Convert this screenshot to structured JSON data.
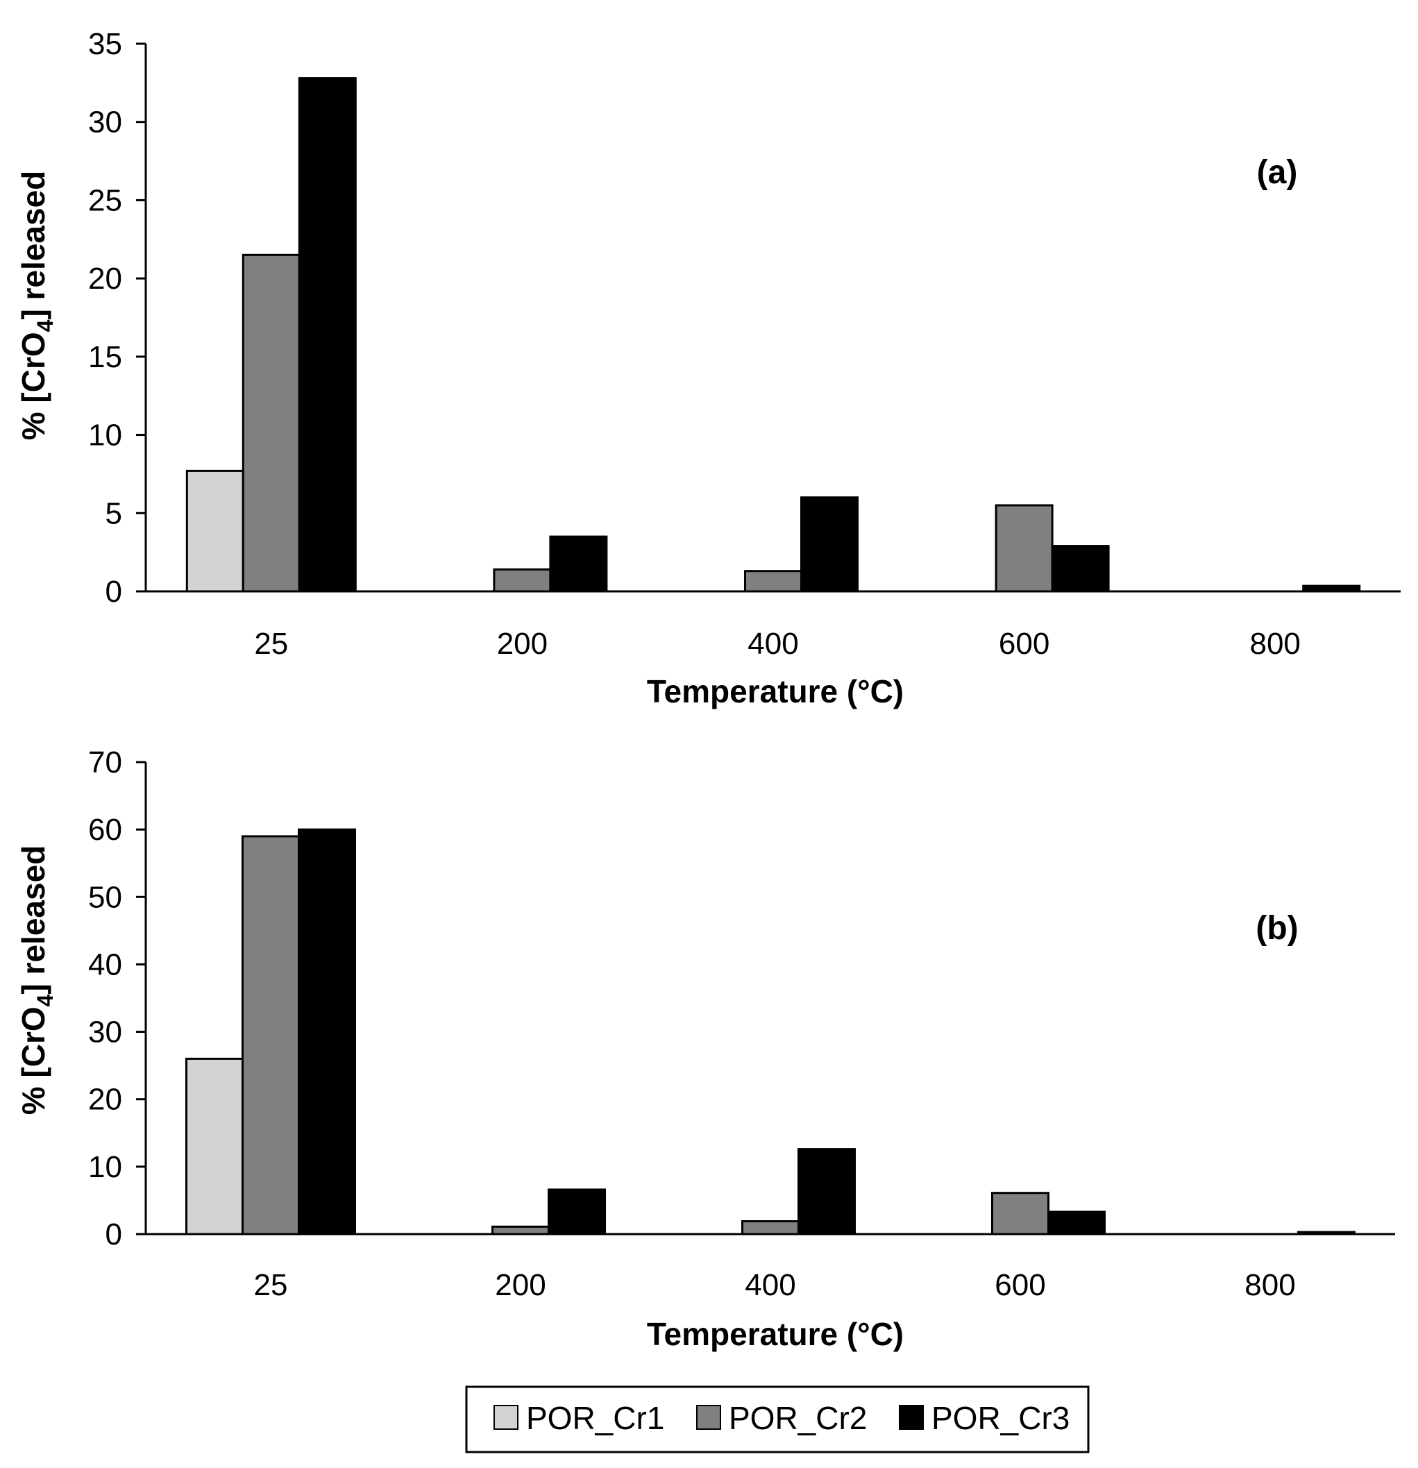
{
  "chart_data": [
    {
      "type": "bar",
      "panel_label": "(a)",
      "categories": [
        "25",
        "200",
        "400",
        "600",
        "800"
      ],
      "series": [
        {
          "name": "POR_Cr1",
          "values": [
            7.7,
            0,
            0,
            0,
            0
          ]
        },
        {
          "name": "POR_Cr2",
          "values": [
            21.5,
            1.4,
            1.3,
            5.5,
            0
          ]
        },
        {
          "name": "POR_Cr3",
          "values": [
            32.8,
            3.5,
            6.0,
            2.9,
            0.35
          ]
        }
      ],
      "xlabel": "Temperature (°C)",
      "ylabel_parts": [
        "% [CrO",
        "4",
        "] released"
      ],
      "ylim": [
        0,
        35
      ],
      "yticks": [
        "0",
        "5",
        "10",
        "15",
        "20",
        "25",
        "30",
        "35"
      ],
      "ytick_values": [
        0,
        5,
        10,
        15,
        20,
        25,
        30,
        35
      ],
      "grid": false
    },
    {
      "type": "bar",
      "panel_label": "(b)",
      "categories": [
        "25",
        "200",
        "400",
        "600",
        "800"
      ],
      "series": [
        {
          "name": "POR_Cr1",
          "values": [
            26,
            0,
            0,
            0,
            0
          ]
        },
        {
          "name": "POR_Cr2",
          "values": [
            59,
            1.1,
            1.9,
            6.1,
            0
          ]
        },
        {
          "name": "POR_Cr3",
          "values": [
            60,
            6.6,
            12.6,
            3.3,
            0.3
          ]
        }
      ],
      "xlabel": "Temperature (°C)",
      "ylabel_parts": [
        "% [CrO",
        "4",
        "] released"
      ],
      "ylim": [
        0,
        70
      ],
      "yticks": [
        "0",
        "10",
        "20",
        "30",
        "40",
        "50",
        "60",
        "70"
      ],
      "ytick_values": [
        0,
        10,
        20,
        30,
        40,
        50,
        60,
        70
      ],
      "grid": false
    }
  ],
  "legend": {
    "placement": "bottom-center",
    "items": [
      "POR_Cr1",
      "POR_Cr2",
      "POR_Cr3"
    ]
  },
  "colors": {
    "POR_Cr1": "#d3d3d3",
    "POR_Cr2": "#808080",
    "POR_Cr3": "#000000",
    "axis": "#000000"
  }
}
